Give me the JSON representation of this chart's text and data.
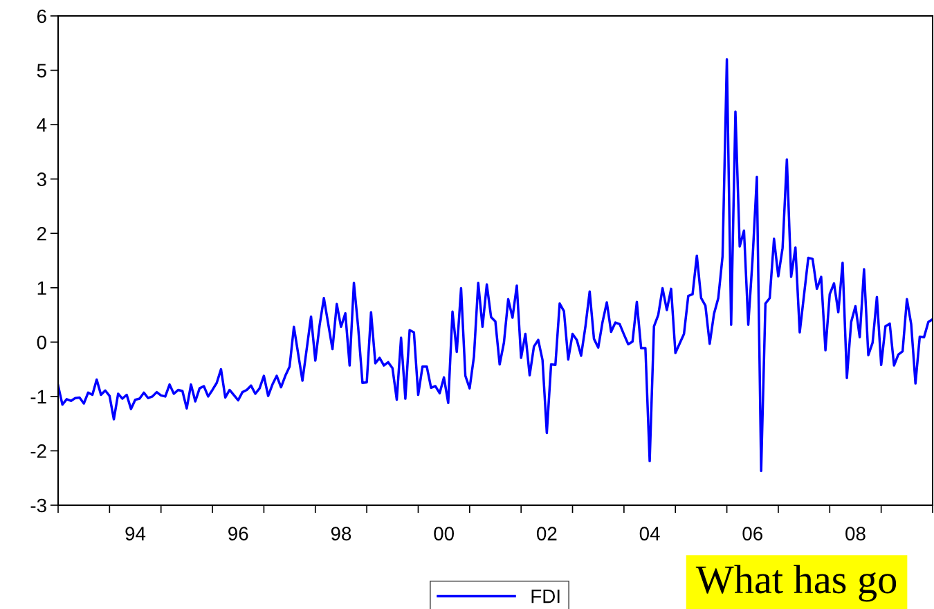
{
  "chart_data": {
    "type": "line",
    "x": [
      "1993-01",
      "1993-02",
      "1993-03",
      "1993-04",
      "1993-05",
      "1993-06",
      "1993-07",
      "1993-08",
      "1993-09",
      "1993-10",
      "1993-11",
      "1993-12",
      "1994-01",
      "1994-02",
      "1994-03",
      "1994-04",
      "1994-05",
      "1994-06",
      "1994-07",
      "1994-08",
      "1994-09",
      "1994-10",
      "1994-11",
      "1994-12",
      "1995-01",
      "1995-02",
      "1995-03",
      "1995-04",
      "1995-05",
      "1995-06",
      "1995-07",
      "1995-08",
      "1995-09",
      "1995-10",
      "1995-11",
      "1995-12",
      "1996-01",
      "1996-02",
      "1996-03",
      "1996-04",
      "1996-05",
      "1996-07",
      "1996-08",
      "1996-09",
      "1996-10",
      "1996-11",
      "1996-12",
      "1997-01",
      "1997-02",
      "1997-03",
      "1997-04",
      "1997-05",
      "1997-06",
      "1997-07",
      "1997-08",
      "1997-10",
      "1997-12",
      "1998-01",
      "1998-02",
      "1998-03",
      "1998-05",
      "1998-06",
      "1998-07",
      "1998-08",
      "1998-09",
      "1998-10",
      "1998-11",
      "1998-12",
      "1999-01",
      "1999-02",
      "1999-03",
      "1999-04",
      "1999-05",
      "1999-06",
      "1999-07",
      "1999-08",
      "1999-09",
      "1999-10",
      "1999-11",
      "1999-12",
      "2000-01",
      "2000-02",
      "2000-03",
      "2000-04",
      "2000-05",
      "2000-06",
      "2000-07",
      "2000-08",
      "2000-09",
      "2000-10",
      "2000-11",
      "2000-12",
      "2001-01",
      "2001-02",
      "2001-03",
      "2001-04",
      "2001-05",
      "2001-06",
      "2001-07",
      "2001-08",
      "2001-09",
      "2001-10",
      "2001-11",
      "2001-12",
      "2002-01",
      "2002-02",
      "2002-03",
      "2002-04",
      "2002-05",
      "2002-06",
      "2002-07",
      "2002-08",
      "2002-09",
      "2002-10",
      "2002-11",
      "2002-12",
      "2003-01",
      "2003-02",
      "2003-03",
      "2003-04",
      "2003-05",
      "2003-06",
      "2003-07",
      "2003-08",
      "2003-09",
      "2003-10",
      "2003-11",
      "2003-12",
      "2004-01",
      "2004-02",
      "2004-03",
      "2004-04",
      "2004-05",
      "2004-06",
      "2004-07",
      "2004-08",
      "2004-09",
      "2004-10",
      "2004-11",
      "2004-12",
      "2005-01",
      "2005-03",
      "2005-04",
      "2005-05",
      "2005-06",
      "2005-07",
      "2005-08",
      "2005-09",
      "2005-10",
      "2005-11",
      "2005-12",
      "2006-01",
      "2006-02",
      "2006-03",
      "2006-04",
      "2006-05",
      "2006-06",
      "2006-07",
      "2006-08",
      "2006-09",
      "2006-10",
      "2006-11",
      "2006-12",
      "2007-01",
      "2007-02",
      "2007-03",
      "2007-04",
      "2007-05",
      "2007-06",
      "2007-08",
      "2007-09",
      "2007-10",
      "2007-11",
      "2007-12",
      "2008-01",
      "2008-02",
      "2008-03",
      "2008-04",
      "2008-05",
      "2008-06",
      "2008-07",
      "2008-08",
      "2008-09",
      "2008-10",
      "2008-11",
      "2008-12",
      "2009-01",
      "2009-02",
      "2009-03",
      "2009-04",
      "2009-05",
      "2009-06",
      "2009-07",
      "2009-08",
      "2009-09",
      "2009-10",
      "2009-11",
      "2009-12",
      "2010-01"
    ],
    "series": [
      {
        "name": "FDI",
        "color": "#0000ff",
        "values": [
          -0.8,
          -1.15,
          -1.05,
          -1.08,
          -1.03,
          -1.02,
          -1.13,
          -0.93,
          -0.97,
          -0.69,
          -0.97,
          -0.89,
          -0.99,
          -1.42,
          -0.95,
          -1.04,
          -0.97,
          -1.23,
          -1.06,
          -1.04,
          -0.93,
          -1.03,
          -1.0,
          -0.92,
          -0.98,
          -1.0,
          -0.78,
          -0.95,
          -0.88,
          -0.9,
          -1.22,
          -0.78,
          -1.09,
          -0.85,
          -0.81,
          -1.0,
          -0.88,
          -0.75,
          -0.5,
          -1.02,
          -0.88,
          -1.07,
          -0.92,
          -0.88,
          -0.8,
          -0.95,
          -0.85,
          -0.62,
          -0.99,
          -0.78,
          -0.62,
          -0.83,
          -0.62,
          -0.45,
          0.28,
          -0.71,
          0.47,
          -0.34,
          0.31,
          0.81,
          -0.13,
          0.7,
          0.28,
          0.53,
          -0.43,
          1.09,
          0.27,
          -0.75,
          -0.74,
          0.55,
          -0.39,
          -0.29,
          -0.43,
          -0.37,
          -0.48,
          -1.06,
          0.08,
          -1.04,
          0.22,
          0.18,
          -0.97,
          -0.45,
          -0.45,
          -0.84,
          -0.81,
          -0.94,
          -0.65,
          -1.12,
          0.56,
          -0.18,
          0.99,
          -0.62,
          -0.85,
          -0.27,
          1.09,
          0.28,
          1.06,
          0.46,
          0.38,
          -0.41,
          -0.01,
          0.79,
          0.45,
          1.04,
          -0.29,
          0.15,
          -0.61,
          -0.08,
          0.04,
          -0.33,
          -1.67,
          -0.41,
          -0.42,
          0.71,
          0.57,
          -0.32,
          0.15,
          0.04,
          -0.25,
          0.28,
          0.93,
          0.06,
          -0.1,
          0.37,
          0.73,
          0.19,
          0.36,
          0.33,
          0.14,
          -0.04,
          0.01,
          0.74,
          -0.11,
          -0.11,
          -2.19,
          0.29,
          0.5,
          0.99,
          0.59,
          0.98,
          -0.2,
          0.15,
          0.85,
          0.88,
          1.59,
          0.81,
          0.67,
          -0.03,
          0.52,
          0.81,
          1.58,
          5.2,
          0.32,
          4.24,
          1.76,
          2.05,
          0.32,
          1.53,
          3.04,
          -2.37,
          0.71,
          0.81,
          1.9,
          1.21,
          1.73,
          3.36,
          1.2,
          1.74,
          0.18,
          1.55,
          1.53,
          0.98,
          1.2,
          -0.15,
          0.88,
          1.08,
          0.55,
          1.46,
          -0.66,
          0.37,
          0.66,
          0.09,
          1.34,
          -0.24,
          -0.01,
          0.83,
          -0.42,
          0.29,
          0.34,
          -0.43,
          -0.23,
          -0.17,
          0.79,
          0.33,
          -0.76,
          0.1,
          0.09,
          0.37,
          0.42
        ]
      }
    ],
    "xlim": [
      "1993-01",
      "2010-01"
    ],
    "xticks": [
      {
        "value": "1993-01",
        "label": null
      },
      {
        "value": "1994-01",
        "label": null
      },
      {
        "value": "1994-07",
        "label": "94"
      },
      {
        "value": "1995-01",
        "label": null
      },
      {
        "value": "1996-01",
        "label": null
      },
      {
        "value": "1996-07",
        "label": "96"
      },
      {
        "value": "1997-01",
        "label": null
      },
      {
        "value": "1998-01",
        "label": null
      },
      {
        "value": "1998-07",
        "label": "98"
      },
      {
        "value": "1999-01",
        "label": null
      },
      {
        "value": "2000-01",
        "label": null
      },
      {
        "value": "2000-07",
        "label": "00"
      },
      {
        "value": "2001-01",
        "label": null
      },
      {
        "value": "2002-01",
        "label": null
      },
      {
        "value": "2002-07",
        "label": "02"
      },
      {
        "value": "2003-01",
        "label": null
      },
      {
        "value": "2004-01",
        "label": null
      },
      {
        "value": "2004-07",
        "label": "04"
      },
      {
        "value": "2005-01",
        "label": null
      },
      {
        "value": "2006-01",
        "label": null
      },
      {
        "value": "2006-07",
        "label": "06"
      },
      {
        "value": "2007-01",
        "label": null
      },
      {
        "value": "2008-01",
        "label": null
      },
      {
        "value": "2008-07",
        "label": "08"
      },
      {
        "value": "2009-01",
        "label": null
      },
      {
        "value": "2010-01",
        "label": null
      }
    ],
    "ylim": [
      -3,
      6
    ],
    "yticks": [
      -3,
      -2,
      -1,
      0,
      1,
      2,
      3,
      4,
      5,
      6
    ],
    "grid": false,
    "legend": "bottom",
    "marker": "none",
    "line_style": "solid",
    "annotations": [
      "What has go"
    ]
  }
}
